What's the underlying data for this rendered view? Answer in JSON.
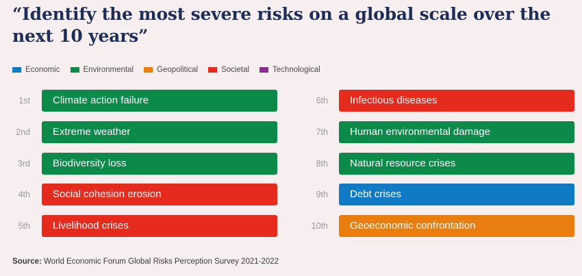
{
  "title": "“Identify the most severe risks on a global scale over the next 10 years”",
  "legend": [
    {
      "label": "Economic",
      "color": "#0f7bc4"
    },
    {
      "label": "Environmental",
      "color": "#0b8a4a"
    },
    {
      "label": "Geopolitical",
      "color": "#e97d0e"
    },
    {
      "label": "Societal",
      "color": "#e52b1e"
    },
    {
      "label": "Technological",
      "color": "#8b2b8c"
    }
  ],
  "chart_data": {
    "type": "table",
    "title": "“Identify the most severe risks on a global scale over the next 10 years”",
    "columns": [
      [
        {
          "rank": "1st",
          "label": "Climate action failure",
          "category": "Environmental",
          "color": "#0b8a4a"
        },
        {
          "rank": "2nd",
          "label": "Extreme weather",
          "category": "Environmental",
          "color": "#0b8a4a"
        },
        {
          "rank": "3rd",
          "label": "Biodiversity loss",
          "category": "Environmental",
          "color": "#0b8a4a"
        },
        {
          "rank": "4th",
          "label": "Social cohesion erosion",
          "category": "Societal",
          "color": "#e52b1e"
        },
        {
          "rank": "5th",
          "label": "Livelihood crises",
          "category": "Societal",
          "color": "#e52b1e"
        }
      ],
      [
        {
          "rank": "6th",
          "label": "Infectious diseases",
          "category": "Societal",
          "color": "#e52b1e"
        },
        {
          "rank": "7th",
          "label": "Human environmental damage",
          "category": "Environmental",
          "color": "#0b8a4a"
        },
        {
          "rank": "8th",
          "label": "Natural resource crises",
          "category": "Environmental",
          "color": "#0b8a4a"
        },
        {
          "rank": "9th",
          "label": "Debt crises",
          "category": "Economic",
          "color": "#0f7bc4"
        },
        {
          "rank": "10th",
          "label": "Geoeconomic confrontation",
          "category": "Geopolitical",
          "color": "#e97d0e"
        }
      ]
    ]
  },
  "source": {
    "label": "Source:",
    "text": " World Economic Forum Global Risks Perception Survey 2021-2022"
  }
}
